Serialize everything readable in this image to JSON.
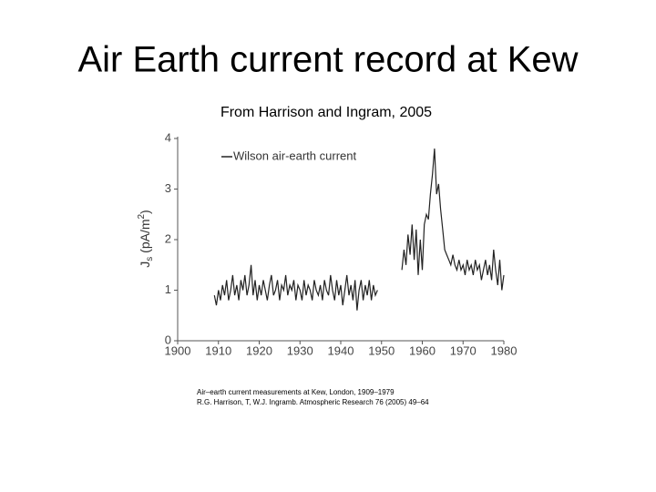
{
  "header": {
    "title": "Air Earth current record at Kew",
    "subtitle": "From Harrison and Ingram, 2005"
  },
  "chart_data": {
    "type": "line",
    "ylabel": {
      "main": "J",
      "sub": "s",
      "rest": " (pA/m",
      "sup": "2",
      "end": ")"
    },
    "xlim": [
      1900,
      1980
    ],
    "xticks": [
      1900,
      1910,
      1920,
      1930,
      1940,
      1950,
      1960,
      1970,
      1980
    ],
    "ylim": [
      0,
      4
    ],
    "yticks": [
      0,
      1,
      2,
      3,
      4
    ],
    "grid": false,
    "legend": "upper-left",
    "x": [
      1909,
      1909.5,
      1910,
      1910.5,
      1911,
      1911.5,
      1912,
      1912.5,
      1913,
      1913.5,
      1914,
      1914.5,
      1915,
      1915.5,
      1916,
      1916.5,
      1917,
      1917.5,
      1918,
      1918.5,
      1919,
      1919.5,
      1920,
      1920.5,
      1921,
      1921.5,
      1922,
      1922.5,
      1923,
      1923.5,
      1924,
      1924.5,
      1925,
      1925.5,
      1926,
      1926.5,
      1927,
      1927.5,
      1928,
      1928.5,
      1929,
      1929.5,
      1930,
      1930.5,
      1931,
      1931.5,
      1932,
      1932.5,
      1933,
      1933.5,
      1934,
      1934.5,
      1935,
      1935.5,
      1936,
      1936.5,
      1937,
      1937.5,
      1938,
      1938.5,
      1939,
      1939.5,
      1940,
      1940.5,
      1941,
      1941.5,
      1942,
      1942.5,
      1943,
      1943.5,
      1944,
      1944.5,
      1945,
      1945.5,
      1946,
      1946.5,
      1947,
      1947.5,
      1948,
      1948.5,
      1949,
      1952,
      1955,
      1955.5,
      1956,
      1956.5,
      1957,
      1957.5,
      1958,
      1958.5,
      1959,
      1959.5,
      1960,
      1960.5,
      1961,
      1961.5,
      1962,
      1962.5,
      1963,
      1963.5,
      1964,
      1964.5,
      1965,
      1965.5,
      1966,
      1966.5,
      1967,
      1967.5,
      1968,
      1968.5,
      1969,
      1969.5,
      1970,
      1970.5,
      1971,
      1971.5,
      1972,
      1972.5,
      1973,
      1973.5,
      1974,
      1974.5,
      1975,
      1975.5,
      1976,
      1976.5,
      1977,
      1977.5,
      1978,
      1978.5,
      1979,
      1979.5,
      1980
    ],
    "series": [
      {
        "name": "Wilson air-earth current",
        "color": "#222222",
        "values": [
          0.9,
          0.7,
          1.0,
          0.8,
          1.1,
          0.9,
          1.2,
          0.8,
          1.0,
          1.3,
          0.9,
          1.1,
          0.8,
          1.2,
          1.0,
          1.3,
          0.9,
          1.1,
          1.5,
          0.9,
          1.2,
          0.8,
          1.1,
          0.9,
          1.2,
          1.0,
          0.8,
          1.1,
          1.3,
          0.9,
          1.0,
          1.2,
          0.8,
          1.1,
          1.0,
          1.3,
          0.9,
          1.1,
          1.0,
          1.2,
          0.8,
          1.1,
          1.0,
          0.8,
          1.2,
          0.9,
          1.1,
          1.0,
          0.8,
          1.2,
          1.0,
          0.9,
          1.1,
          0.8,
          1.2,
          1.0,
          0.9,
          1.3,
          1.0,
          0.8,
          1.2,
          0.9,
          1.1,
          0.7,
          1.0,
          1.3,
          0.9,
          1.1,
          0.8,
          1.2,
          0.6,
          1.0,
          1.2,
          0.8,
          1.1,
          0.9,
          1.2,
          0.8,
          1.1,
          0.9,
          1.0,
          null,
          1.4,
          1.8,
          1.5,
          2.1,
          1.7,
          2.3,
          1.6,
          2.2,
          1.3,
          2.0,
          1.4,
          2.3,
          2.5,
          2.4,
          2.9,
          3.3,
          3.8,
          2.9,
          3.1,
          2.6,
          2.2,
          1.8,
          1.7,
          1.6,
          1.5,
          1.7,
          1.5,
          1.4,
          1.6,
          1.4,
          1.5,
          1.3,
          1.6,
          1.4,
          1.5,
          1.3,
          1.6,
          1.4,
          1.5,
          1.2,
          1.4,
          1.6,
          1.3,
          1.5,
          1.2,
          1.8,
          1.4,
          1.1,
          1.6,
          1.0,
          1.3
        ]
      }
    ]
  },
  "caption": {
    "line1": "Air–earth current measurements at Kew, London, 1909–1979",
    "line2": "R.G. Harrison, T, W.J. Ingramb.  Atmospheric Research 76 (2005) 49–64"
  }
}
